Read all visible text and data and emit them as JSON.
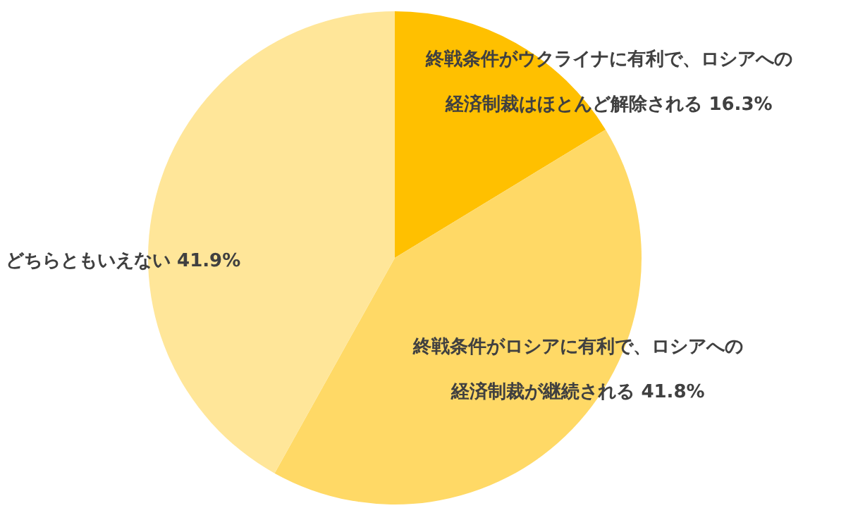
{
  "chart_data": {
    "type": "pie",
    "categories": [
      "終戦条件がウクライナに有利で、ロシアへの経済制裁はほとんど解除される",
      "終戦条件がロシアに有利で、ロシアへの経済制裁が継続される",
      "どちらともいえない"
    ],
    "values": [
      16.3,
      41.8,
      41.9
    ],
    "colors": [
      "#ffc000",
      "#ffd966",
      "#ffe699"
    ],
    "value_labels": [
      "16.3%",
      "41.8%",
      "41.9%"
    ]
  }
}
